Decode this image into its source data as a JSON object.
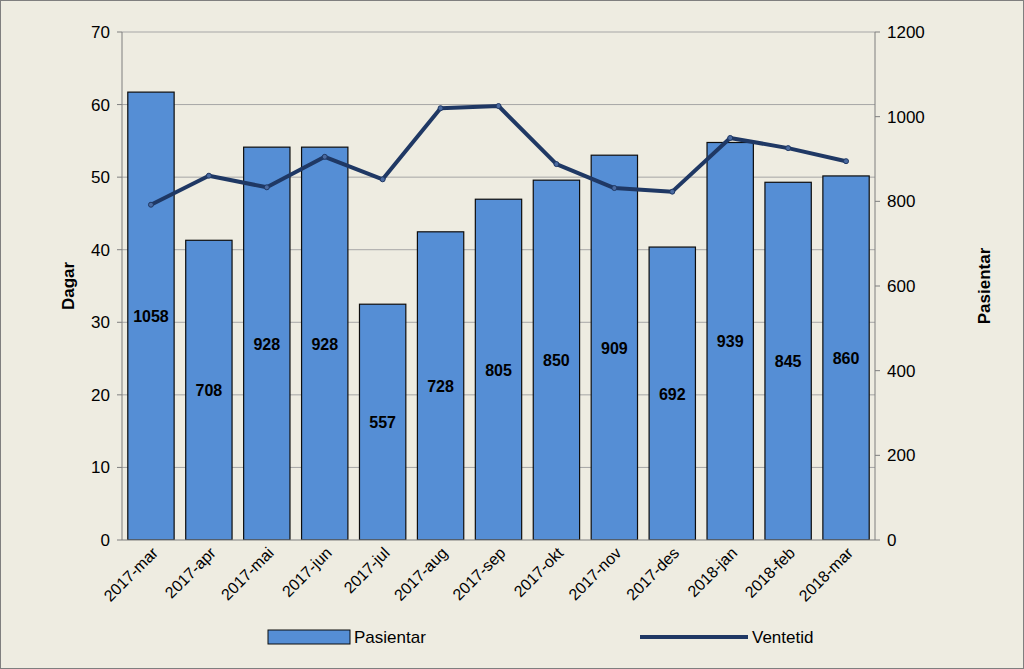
{
  "chart_data": {
    "type": "bar",
    "categories": [
      "2017-mar",
      "2017-apr",
      "2017-mai",
      "2017-jun",
      "2017-jul",
      "2017-aug",
      "2017-sep",
      "2017-okt",
      "2017-nov",
      "2017-des",
      "2018-jan",
      "2018-feb",
      "2018-mar"
    ],
    "series": [
      {
        "name": "Pasientar",
        "type": "bar",
        "axis": "y2",
        "color": "#558ed5",
        "data_labels": true,
        "values": [
          1058,
          708,
          928,
          928,
          557,
          728,
          805,
          850,
          909,
          692,
          939,
          845,
          860
        ]
      },
      {
        "name": "Ventetid",
        "type": "line",
        "axis": "y",
        "color": "#1f3864",
        "marker": "circle",
        "line_style": "solid",
        "values": [
          46.2,
          50.2,
          48.6,
          52.8,
          49.7,
          59.5,
          59.8,
          51.8,
          48.5,
          48.0,
          55.4,
          54.0,
          52.2
        ]
      }
    ],
    "y_label": "Dagar",
    "y2_label": "Pasientar",
    "ylim": [
      0,
      70
    ],
    "yticks": [
      0,
      10,
      20,
      30,
      40,
      50,
      60,
      70
    ],
    "y2lim": [
      0,
      1200
    ],
    "y2ticks": [
      0,
      200,
      400,
      600,
      800,
      1000,
      1200
    ],
    "grid": true,
    "legend": "bottom"
  }
}
